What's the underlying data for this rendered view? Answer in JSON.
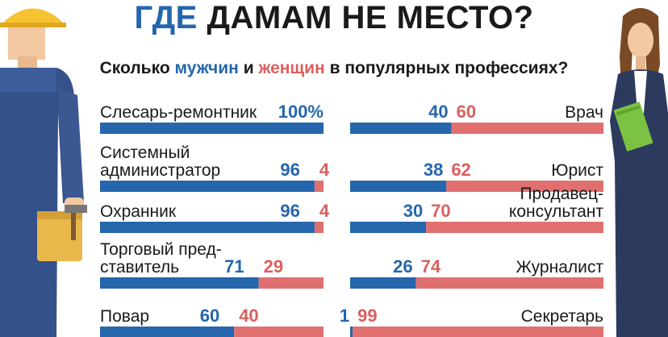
{
  "title": {
    "part1": "ГДЕ",
    "part2": "ДАМАМ НЕ МЕСТО?"
  },
  "subtitle": {
    "p1": "Сколько ",
    "men": "мужчин",
    "p2": " и ",
    "women": "женщин",
    "p3": " в популярных профессиях?"
  },
  "colors": {
    "men": "#2566ad",
    "women": "#e07070"
  },
  "chart_data": {
    "type": "bar",
    "stacked": true,
    "orientation": "horizontal",
    "title": "ГДЕ ДАМАМ НЕ МЕСТО?",
    "subtitle": "Сколько мужчин и женщин в популярных профессиях?",
    "unit": "%",
    "series_names": [
      "мужчин",
      "женщин"
    ],
    "left_column": [
      {
        "lines": [
          "Слесарь-ремонтник"
        ],
        "men": 100,
        "women": 0,
        "men_label": "100%",
        "women_label": ""
      },
      {
        "lines": [
          "Системный",
          "администратор"
        ],
        "men": 96,
        "women": 4,
        "men_label": "96",
        "women_label": "4"
      },
      {
        "lines": [
          "Охранник"
        ],
        "men": 96,
        "women": 4,
        "men_label": "96",
        "women_label": "4"
      },
      {
        "lines": [
          "Торговый пред-",
          "ставитель"
        ],
        "men": 71,
        "women": 29,
        "men_label": "71",
        "women_label": "29"
      },
      {
        "lines": [
          "Повар"
        ],
        "men": 60,
        "women": 40,
        "men_label": "60",
        "women_label": "40"
      }
    ],
    "right_column": [
      {
        "lines": [
          "Врач"
        ],
        "men": 40,
        "women": 60,
        "men_label": "40",
        "women_label": "60"
      },
      {
        "lines": [
          "Юрист"
        ],
        "men": 38,
        "women": 62,
        "men_label": "38",
        "women_label": "62"
      },
      {
        "lines": [
          "Продавец-",
          "консультант"
        ],
        "men": 30,
        "women": 70,
        "men_label": "30",
        "women_label": "70"
      },
      {
        "lines": [
          "Журналист"
        ],
        "men": 26,
        "women": 74,
        "men_label": "26",
        "women_label": "74"
      },
      {
        "lines": [
          "Секретарь"
        ],
        "men": 1,
        "women": 99,
        "men_label": "1",
        "women_label": "99"
      }
    ]
  }
}
